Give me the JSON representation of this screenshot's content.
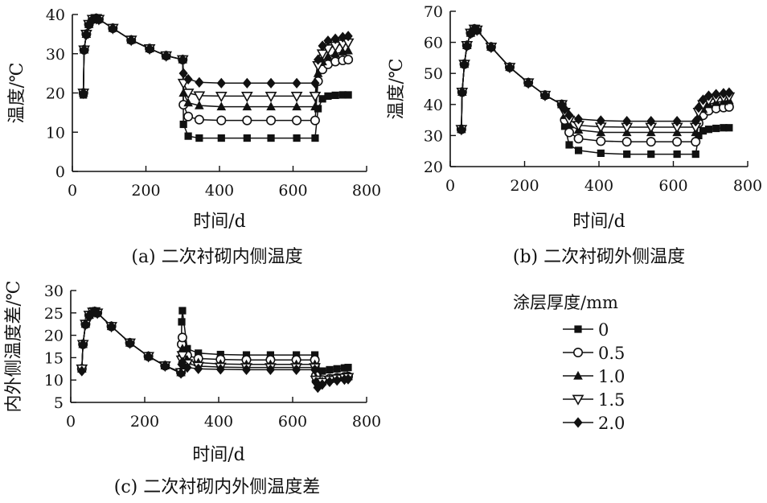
{
  "chart_data": [
    {
      "type": "line",
      "caption": "(a) 二次衬砌内侧温度",
      "xlabel": "时间/d",
      "ylabel": "温度/℃",
      "xlim": [
        0,
        800
      ],
      "ylim": [
        0,
        40
      ],
      "xticks": [
        0,
        200,
        400,
        600,
        800
      ],
      "yticks": [
        0,
        10,
        20,
        30,
        40
      ],
      "series": [
        {
          "name": "0",
          "marker": "square",
          "x": [
            30,
            32,
            38,
            45,
            55,
            65,
            72,
            110,
            160,
            210,
            255,
            300,
            302,
            315,
            345,
            405,
            475,
            540,
            610,
            660,
            668,
            680,
            695,
            715,
            735,
            750
          ],
          "y": [
            19.5,
            31,
            35,
            37.5,
            38.8,
            39,
            38.8,
            36.5,
            33.5,
            31.3,
            29.5,
            28.5,
            12,
            9,
            8.5,
            8.5,
            8.5,
            8.5,
            8.5,
            8.5,
            16,
            18.5,
            19.2,
            19.4,
            19.5,
            19.5
          ]
        },
        {
          "name": "0.5",
          "marker": "circle",
          "x": [
            30,
            32,
            38,
            45,
            55,
            65,
            72,
            110,
            160,
            210,
            255,
            300,
            302,
            315,
            345,
            405,
            475,
            540,
            610,
            660,
            668,
            680,
            695,
            715,
            735,
            750
          ],
          "y": [
            20,
            31,
            35,
            37.5,
            38.8,
            39,
            38.8,
            36.5,
            33.5,
            31.3,
            29.5,
            28.5,
            17,
            14,
            13.2,
            13,
            13,
            13,
            13,
            13,
            23,
            26,
            27.3,
            28,
            28.3,
            28.5
          ]
        },
        {
          "name": "1.0",
          "marker": "triangle",
          "x": [
            30,
            32,
            38,
            45,
            55,
            65,
            72,
            110,
            160,
            210,
            255,
            300,
            302,
            315,
            345,
            405,
            475,
            540,
            610,
            660,
            668,
            680,
            695,
            715,
            735,
            750
          ],
          "y": [
            20,
            31,
            35,
            37.5,
            38.8,
            39,
            38.8,
            36.5,
            33.5,
            31.3,
            29.5,
            28.5,
            20,
            17.5,
            16.8,
            16.5,
            16.5,
            16.5,
            16.5,
            16.5,
            25,
            28,
            29.3,
            30,
            30.5,
            30.8
          ]
        },
        {
          "name": "1.5",
          "marker": "triangle-down",
          "x": [
            30,
            32,
            38,
            45,
            55,
            65,
            72,
            110,
            160,
            210,
            255,
            300,
            302,
            315,
            345,
            405,
            475,
            540,
            610,
            660,
            668,
            680,
            695,
            715,
            735,
            750
          ],
          "y": [
            20,
            31,
            35,
            37.5,
            38.8,
            39,
            38.8,
            36.5,
            33.5,
            31.3,
            29.5,
            28.5,
            22.5,
            20,
            19.3,
            19.2,
            19.2,
            19.2,
            19.2,
            19.2,
            27,
            30,
            31.3,
            32,
            32.5,
            32.8
          ]
        },
        {
          "name": "2.0",
          "marker": "diamond",
          "x": [
            30,
            32,
            38,
            45,
            55,
            65,
            72,
            110,
            160,
            210,
            255,
            300,
            302,
            315,
            345,
            405,
            475,
            540,
            610,
            660,
            668,
            680,
            695,
            715,
            735,
            750
          ],
          "y": [
            20,
            31,
            35,
            37.5,
            38.8,
            39,
            38.8,
            36.5,
            33.5,
            31.3,
            29.5,
            28.5,
            25,
            23.5,
            22.7,
            22.5,
            22.5,
            22.5,
            22.5,
            22.5,
            28.5,
            32,
            33.3,
            33.8,
            34.2,
            34.5
          ]
        }
      ]
    },
    {
      "type": "line",
      "caption": "(b) 二次衬砌外侧温度",
      "xlabel": "时间/d",
      "ylabel": "温度/℃",
      "xlim": [
        0,
        800
      ],
      "ylim": [
        20,
        70
      ],
      "xticks": [
        0,
        200,
        400,
        600,
        800
      ],
      "yticks": [
        20,
        30,
        40,
        50,
        60,
        70
      ],
      "series": [
        {
          "name": "0",
          "marker": "square",
          "x": [
            30,
            32,
            38,
            45,
            55,
            65,
            72,
            110,
            160,
            210,
            255,
            300,
            308,
            320,
            345,
            405,
            475,
            540,
            610,
            660,
            668,
            680,
            695,
            715,
            735,
            750
          ],
          "y": [
            32,
            44,
            53,
            59,
            63,
            64.3,
            64,
            58.5,
            52,
            47,
            43,
            40,
            33,
            27,
            25.2,
            24.3,
            24,
            24,
            24,
            24,
            30,
            31.5,
            32,
            32.3,
            32.5,
            32.5
          ]
        },
        {
          "name": "0.5",
          "marker": "circle",
          "x": [
            30,
            32,
            38,
            45,
            55,
            65,
            72,
            110,
            160,
            210,
            255,
            300,
            308,
            320,
            345,
            405,
            475,
            540,
            610,
            660,
            668,
            680,
            695,
            715,
            735,
            750
          ],
          "y": [
            32,
            44,
            53,
            59,
            63,
            64.3,
            64,
            58.5,
            52,
            47,
            43,
            40,
            35,
            31,
            29,
            28.2,
            28,
            28,
            28,
            28,
            34,
            36.5,
            38,
            38.7,
            39,
            39.2
          ]
        },
        {
          "name": "1.0",
          "marker": "triangle",
          "x": [
            30,
            32,
            38,
            45,
            55,
            65,
            72,
            110,
            160,
            210,
            255,
            300,
            308,
            320,
            345,
            405,
            475,
            540,
            610,
            660,
            668,
            680,
            695,
            715,
            735,
            750
          ],
          "y": [
            32,
            44,
            53,
            59,
            63,
            64.3,
            64,
            58.5,
            52,
            47,
            43,
            40,
            36.5,
            33.5,
            31.8,
            31,
            31,
            31,
            31,
            31,
            36,
            38.5,
            40,
            40.7,
            41,
            41.3
          ]
        },
        {
          "name": "1.5",
          "marker": "triangle-down",
          "x": [
            30,
            32,
            38,
            45,
            55,
            65,
            72,
            110,
            160,
            210,
            255,
            300,
            308,
            320,
            345,
            405,
            475,
            540,
            610,
            660,
            668,
            680,
            695,
            715,
            735,
            750
          ],
          "y": [
            32,
            44,
            53,
            59,
            63,
            64.3,
            64,
            58.5,
            52,
            47,
            43,
            40,
            37.5,
            35,
            33.3,
            32.8,
            32.7,
            32.7,
            32.7,
            32.7,
            37.5,
            40,
            41.3,
            42,
            42.3,
            42.5
          ]
        },
        {
          "name": "2.0",
          "marker": "diamond",
          "x": [
            30,
            32,
            38,
            45,
            55,
            65,
            72,
            110,
            160,
            210,
            255,
            300,
            308,
            320,
            345,
            405,
            475,
            540,
            610,
            660,
            668,
            680,
            695,
            715,
            735,
            750
          ],
          "y": [
            32,
            44,
            53,
            59,
            63,
            64.3,
            64,
            58.5,
            52,
            47,
            43,
            40,
            38.5,
            36.5,
            35.3,
            34.8,
            34.6,
            34.6,
            34.6,
            34.6,
            39,
            41.5,
            42.8,
            43.3,
            43.6,
            43.8
          ]
        }
      ]
    },
    {
      "type": "line",
      "caption": "(c) 二次衬砌内外侧温度差",
      "xlabel": "时间/d",
      "ylabel": "内外侧温度差/℃",
      "xlim": [
        0,
        800
      ],
      "ylim": [
        5,
        30
      ],
      "xticks": [
        0,
        200,
        400,
        600,
        800
      ],
      "yticks": [
        5,
        10,
        15,
        20,
        25,
        30
      ],
      "series": [
        {
          "name": "0",
          "marker": "square",
          "x": [
            30,
            33,
            40,
            50,
            60,
            65,
            72,
            110,
            160,
            210,
            255,
            298,
            300,
            302,
            315,
            345,
            405,
            475,
            540,
            610,
            660,
            663,
            668,
            680,
            700,
            720,
            740,
            750
          ],
          "y": [
            12.5,
            18,
            22.5,
            24.5,
            25.2,
            25.3,
            25,
            22,
            18.3,
            15.3,
            13.2,
            11.7,
            23,
            25.5,
            17,
            16,
            15.7,
            15.6,
            15.6,
            15.6,
            15.6,
            13,
            11.5,
            12,
            12.3,
            12.5,
            12.7,
            12.8
          ]
        },
        {
          "name": "0.5",
          "marker": "circle",
          "x": [
            30,
            33,
            40,
            50,
            60,
            65,
            72,
            110,
            160,
            210,
            255,
            298,
            300,
            302,
            315,
            345,
            405,
            475,
            540,
            610,
            660,
            663,
            668,
            680,
            700,
            720,
            740,
            750
          ],
          "y": [
            12.5,
            18,
            22.5,
            24.5,
            25.2,
            25.3,
            25,
            22,
            18.3,
            15.3,
            13.2,
            11.7,
            18,
            19.5,
            15.5,
            14.8,
            14.6,
            14.5,
            14.5,
            14.5,
            14.5,
            11,
            9.5,
            10,
            10.3,
            10.5,
            10.7,
            10.8
          ]
        },
        {
          "name": "1.0",
          "marker": "triangle",
          "x": [
            30,
            33,
            40,
            50,
            60,
            65,
            72,
            110,
            160,
            210,
            255,
            298,
            300,
            302,
            315,
            345,
            405,
            475,
            540,
            610,
            660,
            663,
            668,
            680,
            700,
            720,
            740,
            750
          ],
          "y": [
            12.5,
            18,
            22.5,
            24.5,
            25.2,
            25.3,
            25,
            22,
            18.3,
            15.3,
            13.2,
            11.7,
            16,
            17,
            14.5,
            13.9,
            13.6,
            13.5,
            13.5,
            13.5,
            13.5,
            10.5,
            9,
            9.7,
            10.2,
            10.5,
            10.7,
            10.8
          ]
        },
        {
          "name": "1.5",
          "marker": "triangle-down",
          "x": [
            30,
            33,
            40,
            50,
            60,
            65,
            72,
            110,
            160,
            210,
            255,
            298,
            300,
            302,
            315,
            345,
            405,
            475,
            540,
            610,
            660,
            663,
            668,
            680,
            700,
            720,
            740,
            750
          ],
          "y": [
            12.5,
            18,
            22.5,
            24.5,
            25.2,
            25.3,
            25,
            22,
            18.3,
            15.3,
            13.2,
            11.7,
            14.5,
            15.5,
            13.7,
            13.1,
            12.9,
            12.8,
            12.8,
            12.8,
            12.8,
            10,
            8.8,
            9.5,
            10,
            10.3,
            10.5,
            10.6
          ]
        },
        {
          "name": "2.0",
          "marker": "diamond",
          "x": [
            30,
            33,
            40,
            50,
            60,
            65,
            72,
            110,
            160,
            210,
            255,
            298,
            300,
            302,
            315,
            345,
            405,
            475,
            540,
            610,
            660,
            663,
            668,
            680,
            700,
            720,
            740,
            750
          ],
          "y": [
            12,
            18,
            22.5,
            24.5,
            25.2,
            25.3,
            25,
            22,
            18.3,
            15.3,
            13.2,
            11.5,
            13.5,
            14,
            12.8,
            12.5,
            12.4,
            12.3,
            12.3,
            12.3,
            12.3,
            9.5,
            8.3,
            9,
            9.6,
            9.9,
            10.1,
            10.2
          ]
        }
      ]
    }
  ],
  "legend": {
    "title": "涂层厚度/mm",
    "items": [
      {
        "label": "0",
        "marker": "square"
      },
      {
        "label": "0.5",
        "marker": "circle"
      },
      {
        "label": "1.0",
        "marker": "triangle"
      },
      {
        "label": "1.5",
        "marker": "triangle-down"
      },
      {
        "label": "2.0",
        "marker": "diamond"
      }
    ]
  }
}
